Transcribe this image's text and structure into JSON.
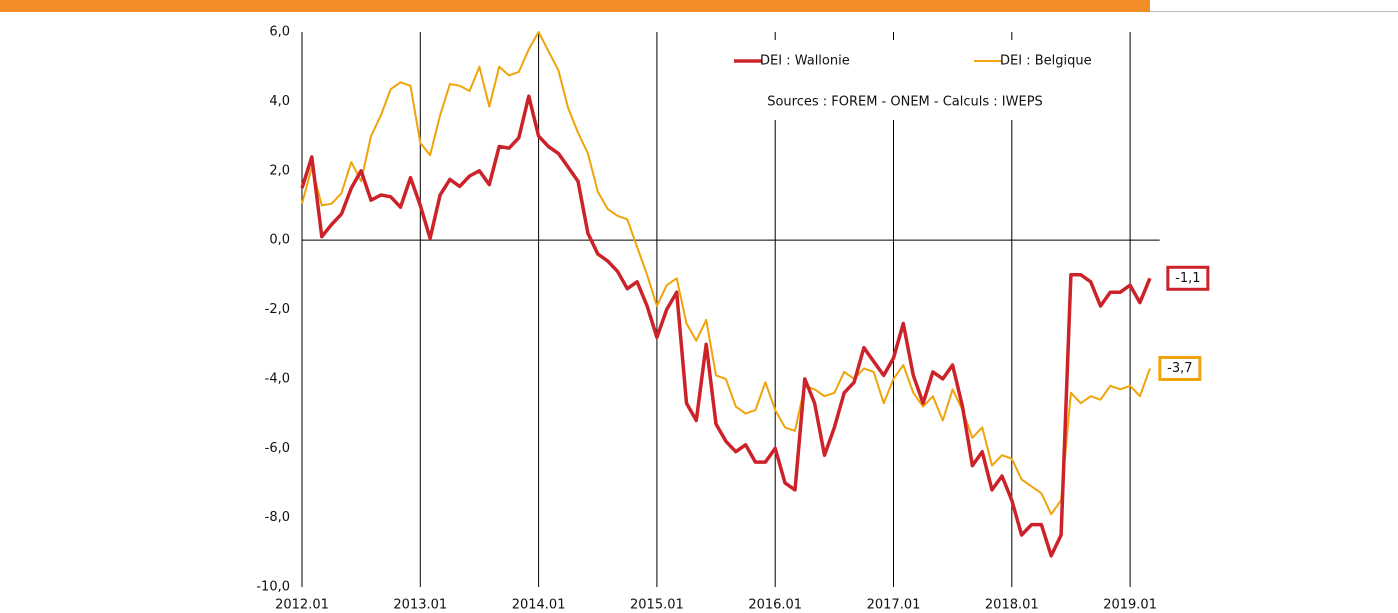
{
  "chart_data": {
    "type": "line",
    "source": "Sources : FOREM - ONEM - Calculs : IWEPS",
    "x": [
      2012,
      2012.083,
      2012.167,
      2012.25,
      2012.333,
      2012.417,
      2012.5,
      2012.583,
      2012.667,
      2012.75,
      2012.833,
      2012.917,
      2013,
      2013.083,
      2013.167,
      2013.25,
      2013.333,
      2013.417,
      2013.5,
      2013.583,
      2013.667,
      2013.75,
      2013.833,
      2013.917,
      2014,
      2014.083,
      2014.167,
      2014.25,
      2014.333,
      2014.417,
      2014.5,
      2014.583,
      2014.667,
      2014.75,
      2014.833,
      2014.917,
      2015,
      2015.083,
      2015.167,
      2015.25,
      2015.333,
      2015.417,
      2015.5,
      2015.583,
      2015.667,
      2015.75,
      2015.833,
      2015.917,
      2016,
      2016.083,
      2016.167,
      2016.25,
      2016.333,
      2016.417,
      2016.5,
      2016.583,
      2016.667,
      2016.75,
      2016.833,
      2016.917,
      2017,
      2017.083,
      2017.167,
      2017.25,
      2017.333,
      2017.417,
      2017.5,
      2017.583,
      2017.667,
      2017.75,
      2017.833,
      2017.917,
      2018,
      2018.083,
      2018.167,
      2018.25,
      2018.333,
      2018.417,
      2018.5,
      2018.583,
      2018.667,
      2018.75,
      2018.833,
      2018.917,
      2019,
      2019.083,
      2019.167
    ],
    "series": [
      {
        "name": "DEI : Wallonie",
        "color": "#cc2229",
        "last_label": "-1,1",
        "values": [
          1.5,
          2.4,
          0.1,
          0.45,
          0.75,
          1.5,
          2.0,
          1.15,
          1.3,
          1.25,
          0.95,
          1.8,
          1.0,
          0.05,
          1.3,
          1.75,
          1.55,
          1.85,
          2.0,
          1.6,
          2.7,
          2.65,
          2.95,
          4.15,
          3.0,
          2.7,
          2.5,
          2.1,
          1.7,
          0.2,
          -0.4,
          -0.6,
          -0.9,
          -1.4,
          -1.2,
          -1.9,
          -2.8,
          -2.0,
          -1.5,
          -4.7,
          -5.2,
          -3.0,
          -5.3,
          -5.8,
          -6.1,
          -5.9,
          -6.4,
          -6.4,
          -6.0,
          -7.0,
          -7.2,
          -4.0,
          -4.7,
          -6.2,
          -5.4,
          -4.4,
          -4.1,
          -3.1,
          -3.5,
          -3.9,
          -3.4,
          -2.4,
          -3.9,
          -4.7,
          -3.8,
          -4.0,
          -3.6,
          -4.8,
          -6.5,
          -6.1,
          -7.2,
          -6.8,
          -7.5,
          -8.5,
          -8.2,
          -8.2,
          -9.1,
          -8.5,
          -1.0,
          -1.0,
          -1.2,
          -1.9,
          -1.5,
          -1.5,
          -1.3,
          -1.8,
          -1.1
        ]
      },
      {
        "name": "DEI : Belgique",
        "color": "#f0a30a",
        "last_label": "-3,7",
        "values": [
          1.05,
          2.1,
          1.0,
          1.05,
          1.35,
          2.25,
          1.7,
          3.0,
          3.6,
          4.35,
          4.55,
          4.45,
          2.8,
          2.45,
          3.6,
          4.5,
          4.45,
          4.3,
          5.0,
          3.85,
          5.0,
          4.75,
          4.85,
          5.5,
          6.0,
          5.45,
          4.9,
          3.8,
          3.1,
          2.5,
          1.4,
          0.9,
          0.7,
          0.6,
          -0.2,
          -1.0,
          -1.9,
          -1.3,
          -1.1,
          -2.4,
          -2.9,
          -2.3,
          -3.9,
          -4.0,
          -4.8,
          -5.0,
          -4.9,
          -4.1,
          -4.9,
          -5.4,
          -5.5,
          -4.2,
          -4.3,
          -4.5,
          -4.4,
          -3.8,
          -4.0,
          -3.7,
          -3.8,
          -4.7,
          -4.0,
          -3.6,
          -4.4,
          -4.8,
          -4.5,
          -5.2,
          -4.3,
          -4.9,
          -5.7,
          -5.4,
          -6.5,
          -6.2,
          -6.3,
          -6.9,
          -7.1,
          -7.3,
          -7.9,
          -7.5,
          -4.4,
          -4.7,
          -4.5,
          -4.6,
          -4.2,
          -4.3,
          -4.2,
          -4.5,
          -3.7
        ]
      }
    ],
    "xlim": [
      2012,
      2019.25
    ],
    "xticks": [
      {
        "value": 2012,
        "label": "2012.01"
      },
      {
        "value": 2013,
        "label": "2013.01"
      },
      {
        "value": 2014,
        "label": "2014.01"
      },
      {
        "value": 2015,
        "label": "2015.01"
      },
      {
        "value": 2016,
        "label": "2016.01"
      },
      {
        "value": 2017,
        "label": "2017.01"
      },
      {
        "value": 2018,
        "label": "2018.01"
      },
      {
        "value": 2019,
        "label": "2019.01"
      }
    ],
    "ylim": [
      -10,
      6
    ],
    "yticks": [
      {
        "value": -10,
        "label": "-10,0"
      },
      {
        "value": -8,
        "label": "-8,0"
      },
      {
        "value": -6,
        "label": "-6,0"
      },
      {
        "value": -4,
        "label": "-4,0"
      },
      {
        "value": -2,
        "label": "-2,0"
      },
      {
        "value": 0,
        "label": "0,0"
      },
      {
        "value": 2,
        "label": "2,0"
      },
      {
        "value": 4,
        "label": "4,0"
      },
      {
        "value": 6,
        "label": "6,0"
      }
    ],
    "grid": true,
    "legend": "top-right"
  }
}
